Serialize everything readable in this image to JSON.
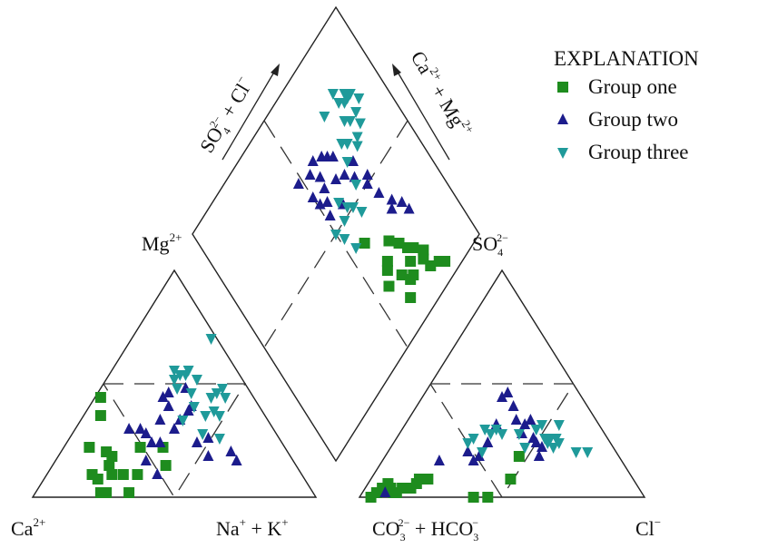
{
  "chart_data": {
    "type": "scatter",
    "subtype": "piper-trilinear",
    "legend": {
      "title": "EXPLANATION",
      "placement": "top-right",
      "entries": [
        {
          "name": "Group one",
          "marker": "square",
          "color": "#1e8c1e"
        },
        {
          "name": "Group two",
          "marker": "triangle-up",
          "color": "#1c1c8c"
        },
        {
          "name": "Group three",
          "marker": "triangle-down",
          "color": "#1f9a9a"
        }
      ]
    },
    "axis_labels": {
      "ca": {
        "base": "Ca",
        "sup": "2+"
      },
      "nak": {
        "base1": "Na",
        "sup1": "+",
        "mid": " + K",
        "sup2": "+"
      },
      "co3hco3": {
        "base1": "CO",
        "sub1": "3",
        "sup1": "2−",
        "mid": " + HCO",
        "sub2": "3",
        "sup2": "−"
      },
      "cl": {
        "base": "Cl",
        "sup": "−"
      },
      "mg": {
        "base": "Mg",
        "sup": "2+"
      },
      "so4": {
        "base": "SO",
        "sub": "4",
        "sup": "2−"
      },
      "so4cl": {
        "base1": "SO",
        "sub1": "4",
        "sup1": "2−",
        "mid": " + Cl",
        "sup2": "−"
      },
      "camg": {
        "base1": "Ca",
        "sup1": "2+",
        "mid": " + Mg",
        "sup2": "2+"
      }
    },
    "cation_triangle": {
      "series": [
        {
          "name": "Group one",
          "points": [
            [
              0.24,
              0.44
            ],
            [
              0.24,
              0.36
            ],
            [
              0.2,
              0.22
            ],
            [
              0.21,
              0.1
            ],
            [
              0.23,
              0.08
            ],
            [
              0.24,
              0.02
            ],
            [
              0.26,
              0.02
            ],
            [
              0.26,
              0.2
            ],
            [
              0.28,
              0.18
            ],
            [
              0.28,
              0.1
            ],
            [
              0.32,
              0.1
            ],
            [
              0.34,
              0.02
            ],
            [
              0.37,
              0.1
            ],
            [
              0.38,
              0.22
            ],
            [
              0.46,
              0.22
            ],
            [
              0.47,
              0.14
            ],
            [
              0.27,
              0.14
            ]
          ]
        },
        {
          "name": "Group two",
          "points": [
            [
              0.34,
              0.3
            ],
            [
              0.38,
              0.3
            ],
            [
              0.42,
              0.24
            ],
            [
              0.45,
              0.24
            ],
            [
              0.45,
              0.34
            ],
            [
              0.46,
              0.44
            ],
            [
              0.48,
              0.46
            ],
            [
              0.48,
              0.4
            ],
            [
              0.5,
              0.3
            ],
            [
              0.52,
              0.34
            ],
            [
              0.54,
              0.48
            ],
            [
              0.55,
              0.38
            ],
            [
              0.56,
              0.4
            ],
            [
              0.58,
              0.24
            ],
            [
              0.62,
              0.26
            ],
            [
              0.62,
              0.18
            ],
            [
              0.7,
              0.2
            ],
            [
              0.72,
              0.16
            ],
            [
              0.4,
              0.28
            ],
            [
              0.44,
              0.1
            ],
            [
              0.4,
              0.16
            ]
          ]
        },
        {
          "name": "Group three",
          "points": [
            [
              0.5,
              0.56
            ],
            [
              0.5,
              0.52
            ],
            [
              0.51,
              0.48
            ],
            [
              0.52,
              0.54
            ],
            [
              0.54,
              0.54
            ],
            [
              0.55,
              0.56
            ],
            [
              0.56,
              0.46
            ],
            [
              0.57,
              0.4
            ],
            [
              0.6,
              0.28
            ],
            [
              0.61,
              0.36
            ],
            [
              0.63,
              0.44
            ],
            [
              0.64,
              0.38
            ],
            [
              0.65,
              0.46
            ],
            [
              0.66,
              0.36
            ],
            [
              0.67,
              0.48
            ],
            [
              0.68,
              0.44
            ],
            [
              0.66,
              0.26
            ],
            [
              0.63,
              0.7
            ],
            [
              0.58,
              0.52
            ],
            [
              0.53,
              0.34
            ]
          ]
        }
      ]
    },
    "anion_triangle": {
      "series": [
        {
          "name": "Group one",
          "points": [
            [
              0.04,
              0.0
            ],
            [
              0.06,
              0.02
            ],
            [
              0.08,
              0.04
            ],
            [
              0.1,
              0.06
            ],
            [
              0.11,
              0.04
            ],
            [
              0.13,
              0.02
            ],
            [
              0.15,
              0.04
            ],
            [
              0.18,
              0.04
            ],
            [
              0.2,
              0.06
            ],
            [
              0.21,
              0.08
            ],
            [
              0.24,
              0.08
            ],
            [
              0.4,
              0.0
            ],
            [
              0.45,
              0.0
            ],
            [
              0.53,
              0.08
            ],
            [
              0.56,
              0.18
            ],
            [
              0.12,
              0.02
            ]
          ]
        },
        {
          "name": "Group two",
          "points": [
            [
              0.09,
              0.02
            ],
            [
              0.28,
              0.16
            ],
            [
              0.38,
              0.2
            ],
            [
              0.4,
              0.16
            ],
            [
              0.42,
              0.18
            ],
            [
              0.45,
              0.24
            ],
            [
              0.48,
              0.32
            ],
            [
              0.5,
              0.44
            ],
            [
              0.52,
              0.46
            ],
            [
              0.54,
              0.4
            ],
            [
              0.55,
              0.34
            ],
            [
              0.57,
              0.28
            ],
            [
              0.58,
              0.32
            ],
            [
              0.6,
              0.34
            ],
            [
              0.61,
              0.26
            ],
            [
              0.62,
              0.24
            ],
            [
              0.64,
              0.22
            ],
            [
              0.63,
              0.18
            ]
          ]
        },
        {
          "name": "Group three",
          "points": [
            [
              0.38,
              0.24
            ],
            [
              0.4,
              0.26
            ],
            [
              0.43,
              0.2
            ],
            [
              0.44,
              0.3
            ],
            [
              0.46,
              0.28
            ],
            [
              0.48,
              0.3
            ],
            [
              0.5,
              0.28
            ],
            [
              0.56,
              0.28
            ],
            [
              0.58,
              0.22
            ],
            [
              0.62,
              0.3
            ],
            [
              0.64,
              0.32
            ],
            [
              0.65,
              0.26
            ],
            [
              0.66,
              0.24
            ],
            [
              0.67,
              0.26
            ],
            [
              0.68,
              0.22
            ],
            [
              0.69,
              0.26
            ],
            [
              0.7,
              0.24
            ],
            [
              0.76,
              0.2
            ],
            [
              0.8,
              0.2
            ],
            [
              0.7,
              0.32
            ]
          ]
        }
      ]
    },
    "diamond": {
      "series": [
        {
          "name": "Group one",
          "points": [
            [
              0.82,
              0.06
            ],
            [
              0.8,
              0.08
            ],
            [
              0.76,
              0.1
            ],
            [
              0.77,
              0.16
            ],
            [
              0.74,
              0.2
            ],
            [
              0.72,
              0.22
            ],
            [
              0.7,
              0.26
            ],
            [
              0.7,
              0.18
            ],
            [
              0.68,
              0.14
            ],
            [
              0.66,
              0.14
            ],
            [
              0.64,
              0.18
            ],
            [
              0.62,
              0.26
            ],
            [
              0.6,
              0.24
            ],
            [
              0.58,
              0.38
            ],
            [
              0.57,
              0.2
            ],
            [
              0.62,
              0.1
            ],
            [
              0.75,
              0.14
            ],
            [
              0.67,
              0.3
            ]
          ]
        },
        {
          "name": "Group two",
          "points": [
            [
              0.81,
              0.3
            ],
            [
              0.8,
              0.34
            ],
            [
              0.77,
              0.38
            ],
            [
              0.75,
              0.36
            ],
            [
              0.74,
              0.44
            ],
            [
              0.72,
              0.5
            ],
            [
              0.74,
              0.52
            ],
            [
              0.69,
              0.56
            ],
            [
              0.72,
              0.6
            ],
            [
              0.66,
              0.6
            ],
            [
              0.66,
              0.68
            ],
            [
              0.64,
              0.7
            ],
            [
              0.62,
              0.72
            ],
            [
              0.62,
              0.62
            ],
            [
              0.56,
              0.64
            ],
            [
              0.58,
              0.74
            ],
            [
              0.57,
              0.68
            ],
            [
              0.54,
              0.72
            ],
            [
              0.5,
              0.66
            ],
            [
              0.48,
              0.74
            ],
            [
              0.52,
              0.56
            ],
            [
              0.54,
              0.6
            ],
            [
              0.59,
              0.54
            ],
            [
              0.51,
              0.62
            ]
          ]
        },
        {
          "name": "Group three",
          "points": [
            [
              0.88,
              0.72
            ],
            [
              0.86,
              0.76
            ],
            [
              0.84,
              0.76
            ],
            [
              0.84,
              0.7
            ],
            [
              0.83,
              0.66
            ],
            [
              0.82,
              0.76
            ],
            [
              0.8,
              0.78
            ],
            [
              0.8,
              0.7
            ],
            [
              0.78,
              0.72
            ],
            [
              0.79,
              0.64
            ],
            [
              0.77,
              0.62
            ],
            [
              0.74,
              0.66
            ],
            [
              0.72,
              0.68
            ],
            [
              0.7,
              0.62
            ],
            [
              0.68,
              0.54
            ],
            [
              0.64,
              0.46
            ],
            [
              0.62,
              0.5
            ],
            [
              0.6,
              0.52
            ],
            [
              0.58,
              0.56
            ],
            [
              0.56,
              0.5
            ],
            [
              0.52,
              0.46
            ],
            [
              0.5,
              0.5
            ],
            [
              0.54,
              0.4
            ],
            [
              0.8,
              0.82
            ],
            [
              0.84,
              0.78
            ],
            [
              0.72,
              0.8
            ]
          ]
        }
      ]
    }
  }
}
